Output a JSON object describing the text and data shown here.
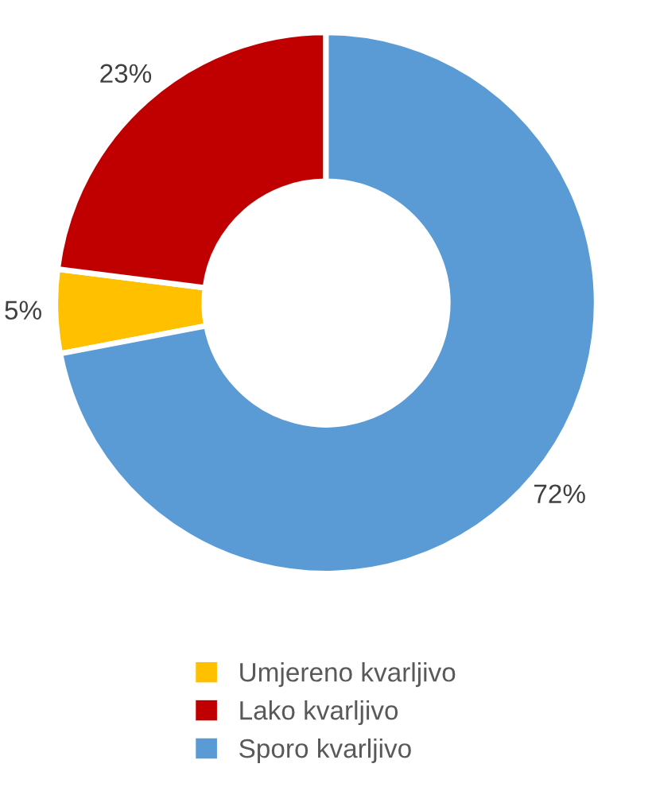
{
  "chart_data": {
    "type": "donut",
    "categories": [
      "Umjereno kvarljivo",
      "Lako kvarljivo",
      "Sporo kvarljivo"
    ],
    "values": [
      5,
      23,
      72
    ],
    "colors": [
      "#ffc000",
      "#c00000",
      "#5b9bd5"
    ],
    "value_labels": [
      "5%",
      "23%",
      "72%"
    ],
    "legend": "bottom"
  }
}
